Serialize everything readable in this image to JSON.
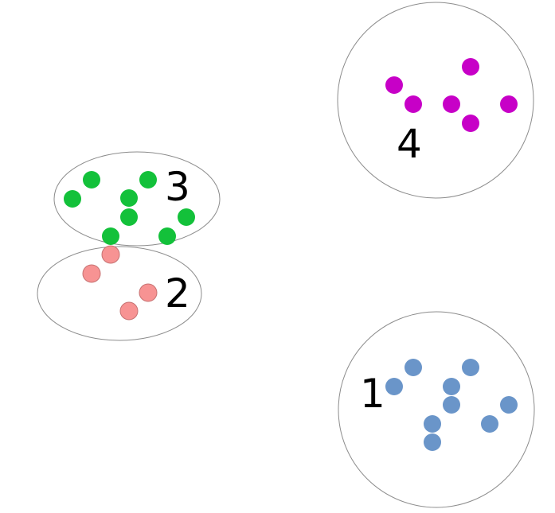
{
  "clusters": [
    {
      "id": "cluster-1",
      "label": "1",
      "color": "#6a95c9"
    },
    {
      "id": "cluster-2",
      "label": "2",
      "color": "#f79393"
    },
    {
      "id": "cluster-3",
      "label": "3",
      "color": "#13c13a"
    },
    {
      "id": "cluster-4",
      "label": "4",
      "color": "#c700c7"
    }
  ]
}
